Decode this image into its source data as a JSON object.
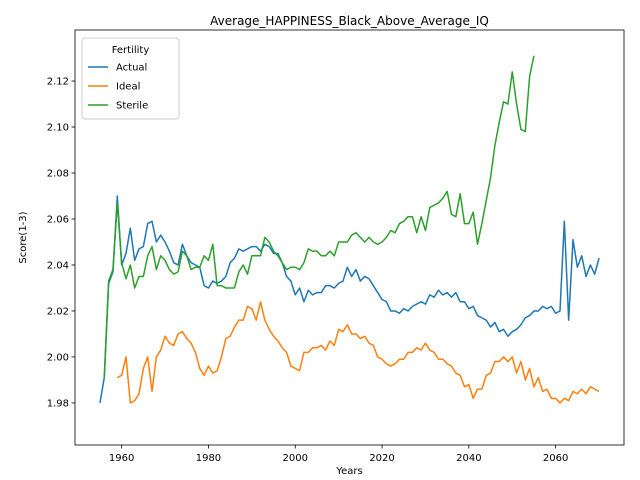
{
  "chart_data": {
    "type": "line",
    "title": "Average_HAPPINESS_Black_Above_Average_IQ",
    "x_label": "Years",
    "y_label": "Score(1-3)",
    "legend_title": "Fertility",
    "legend": "upper left",
    "grid": false,
    "xlim": [
      1949.25,
      2075.75
    ],
    "ylim": [
      1.9617,
      2.1422
    ],
    "xticks": [
      1960,
      1980,
      2000,
      2020,
      2040,
      2060
    ],
    "yticks": [
      1.98,
      {
        "value": 2.0,
        "label": "2.00"
      },
      2.02,
      2.04,
      2.06,
      2.08,
      {
        "value": 2.1,
        "label": "2.10"
      },
      2.12
    ],
    "x": [
      1955,
      1956,
      1957,
      1958,
      1959,
      1960,
      1961,
      1962,
      1963,
      1964,
      1965,
      1966,
      1967,
      1968,
      1969,
      1970,
      1971,
      1972,
      1973,
      1974,
      1975,
      1976,
      1977,
      1978,
      1979,
      1980,
      1981,
      1982,
      1983,
      1984,
      1985,
      1986,
      1987,
      1988,
      1989,
      1990,
      1991,
      1992,
      1993,
      1994,
      1995,
      1996,
      1997,
      1998,
      1999,
      2000,
      2001,
      2002,
      2003,
      2004,
      2005,
      2006,
      2007,
      2008,
      2009,
      2010,
      2011,
      2012,
      2013,
      2014,
      2015,
      2016,
      2017,
      2018,
      2019,
      2020,
      2021,
      2022,
      2023,
      2024,
      2025,
      2026,
      2027,
      2028,
      2029,
      2030,
      2031,
      2032,
      2033,
      2034,
      2035,
      2036,
      2037,
      2038,
      2039,
      2040,
      2041,
      2042,
      2043,
      2044,
      2045,
      2046,
      2047,
      2048,
      2049,
      2050,
      2051,
      2052,
      2053,
      2054,
      2055,
      2056,
      2057,
      2058,
      2059,
      2060,
      2061,
      2062,
      2063,
      2064,
      2065,
      2066,
      2067,
      2068,
      2069,
      2070
    ],
    "series": [
      {
        "name": "Actual",
        "color": "#1f77b4",
        "values": [
          1.98,
          1.991,
          2.032,
          2.037,
          2.07,
          2.04,
          2.045,
          2.056,
          2.042,
          2.047,
          2.048,
          2.058,
          2.059,
          2.05,
          2.053,
          2.05,
          2.046,
          2.041,
          2.04,
          2.049,
          2.044,
          2.041,
          2.04,
          2.039,
          2.031,
          2.03,
          2.033,
          2.032,
          2.033,
          2.035,
          2.041,
          2.043,
          2.047,
          2.046,
          2.047,
          2.048,
          2.048,
          2.046,
          2.049,
          2.048,
          2.045,
          2.045,
          2.041,
          2.035,
          2.033,
          2.027,
          2.03,
          2.024,
          2.029,
          2.027,
          2.028,
          2.028,
          2.031,
          2.031,
          2.03,
          2.032,
          2.033,
          2.039,
          2.035,
          2.038,
          2.033,
          2.035,
          2.034,
          2.031,
          2.028,
          2.025,
          2.024,
          2.02,
          2.02,
          2.019,
          2.021,
          2.02,
          2.022,
          2.023,
          2.024,
          2.023,
          2.027,
          2.026,
          2.029,
          2.027,
          2.028,
          2.026,
          2.028,
          2.024,
          2.024,
          2.021,
          2.022,
          2.018,
          2.017,
          2.016,
          2.013,
          2.015,
          2.011,
          2.012,
          2.009,
          2.011,
          2.012,
          2.014,
          2.017,
          2.018,
          2.02,
          2.02,
          2.022,
          2.021,
          2.022,
          2.019,
          2.02,
          2.059,
          2.016,
          2.051,
          2.039,
          2.044,
          2.035,
          2.04,
          2.036,
          2.043
        ]
      },
      {
        "name": "Ideal",
        "color": "#ff7f0e",
        "values": [
          null,
          null,
          null,
          null,
          1.991,
          1.992,
          2.0,
          1.98,
          1.981,
          1.984,
          1.995,
          2.0,
          1.985,
          2.0,
          2.003,
          2.009,
          2.006,
          2.005,
          2.01,
          2.011,
          2.008,
          2.006,
          2.002,
          1.995,
          1.992,
          1.996,
          1.993,
          1.994,
          2.0,
          2.008,
          2.009,
          2.013,
          2.016,
          2.016,
          2.022,
          2.021,
          2.016,
          2.024,
          2.016,
          2.012,
          2.009,
          2.007,
          2.004,
          2.002,
          1.996,
          1.995,
          1.994,
          2.002,
          2.002,
          2.004,
          2.004,
          2.005,
          2.003,
          2.007,
          2.005,
          2.012,
          2.011,
          2.014,
          2.01,
          2.01,
          2.008,
          2.009,
          2.006,
          2.005,
          2.0,
          1.999,
          1.997,
          1.996,
          1.997,
          1.999,
          1.999,
          2.002,
          2.002,
          2.004,
          2.003,
          2.006,
          2.003,
          2.002,
          1.999,
          1.999,
          1.997,
          1.996,
          1.993,
          1.992,
          1.987,
          1.988,
          1.982,
          1.986,
          1.986,
          1.992,
          1.993,
          1.998,
          1.998,
          2.0,
          1.998,
          2.0,
          1.993,
          1.998,
          1.99,
          1.995,
          1.987,
          1.991,
          1.985,
          1.986,
          1.982,
          1.982,
          1.98,
          1.982,
          1.981,
          1.985,
          1.984,
          1.986,
          1.984,
          1.987,
          1.986,
          1.985
        ]
      },
      {
        "name": "Sterile",
        "color": "#2ca02c",
        "values": [
          null,
          1.991,
          2.033,
          2.038,
          2.067,
          2.041,
          2.034,
          2.04,
          2.03,
          2.035,
          2.035,
          2.044,
          2.048,
          2.038,
          2.044,
          2.042,
          2.038,
          2.036,
          2.037,
          2.046,
          2.044,
          2.038,
          2.039,
          2.039,
          2.044,
          2.042,
          2.049,
          2.031,
          2.031,
          2.03,
          2.03,
          2.03,
          2.037,
          2.04,
          2.036,
          2.044,
          2.044,
          2.044,
          2.052,
          2.05,
          2.046,
          2.044,
          2.041,
          2.038,
          2.039,
          2.039,
          2.038,
          2.041,
          2.047,
          2.046,
          2.046,
          2.044,
          2.044,
          2.046,
          2.044,
          2.05,
          2.05,
          2.05,
          2.053,
          2.054,
          2.052,
          2.05,
          2.052,
          2.05,
          2.049,
          2.05,
          2.052,
          2.055,
          2.054,
          2.058,
          2.059,
          2.061,
          2.061,
          2.054,
          2.061,
          2.055,
          2.065,
          2.066,
          2.067,
          2.069,
          2.072,
          2.062,
          2.061,
          2.071,
          2.058,
          2.058,
          2.063,
          2.049,
          2.058,
          2.068,
          2.078,
          2.092,
          2.102,
          2.111,
          2.11,
          2.124,
          2.11,
          2.099,
          2.098,
          2.122,
          2.131,
          null,
          null,
          null,
          null,
          null,
          null,
          null,
          null,
          null,
          null,
          null,
          null,
          null,
          null,
          null
        ]
      }
    ]
  }
}
